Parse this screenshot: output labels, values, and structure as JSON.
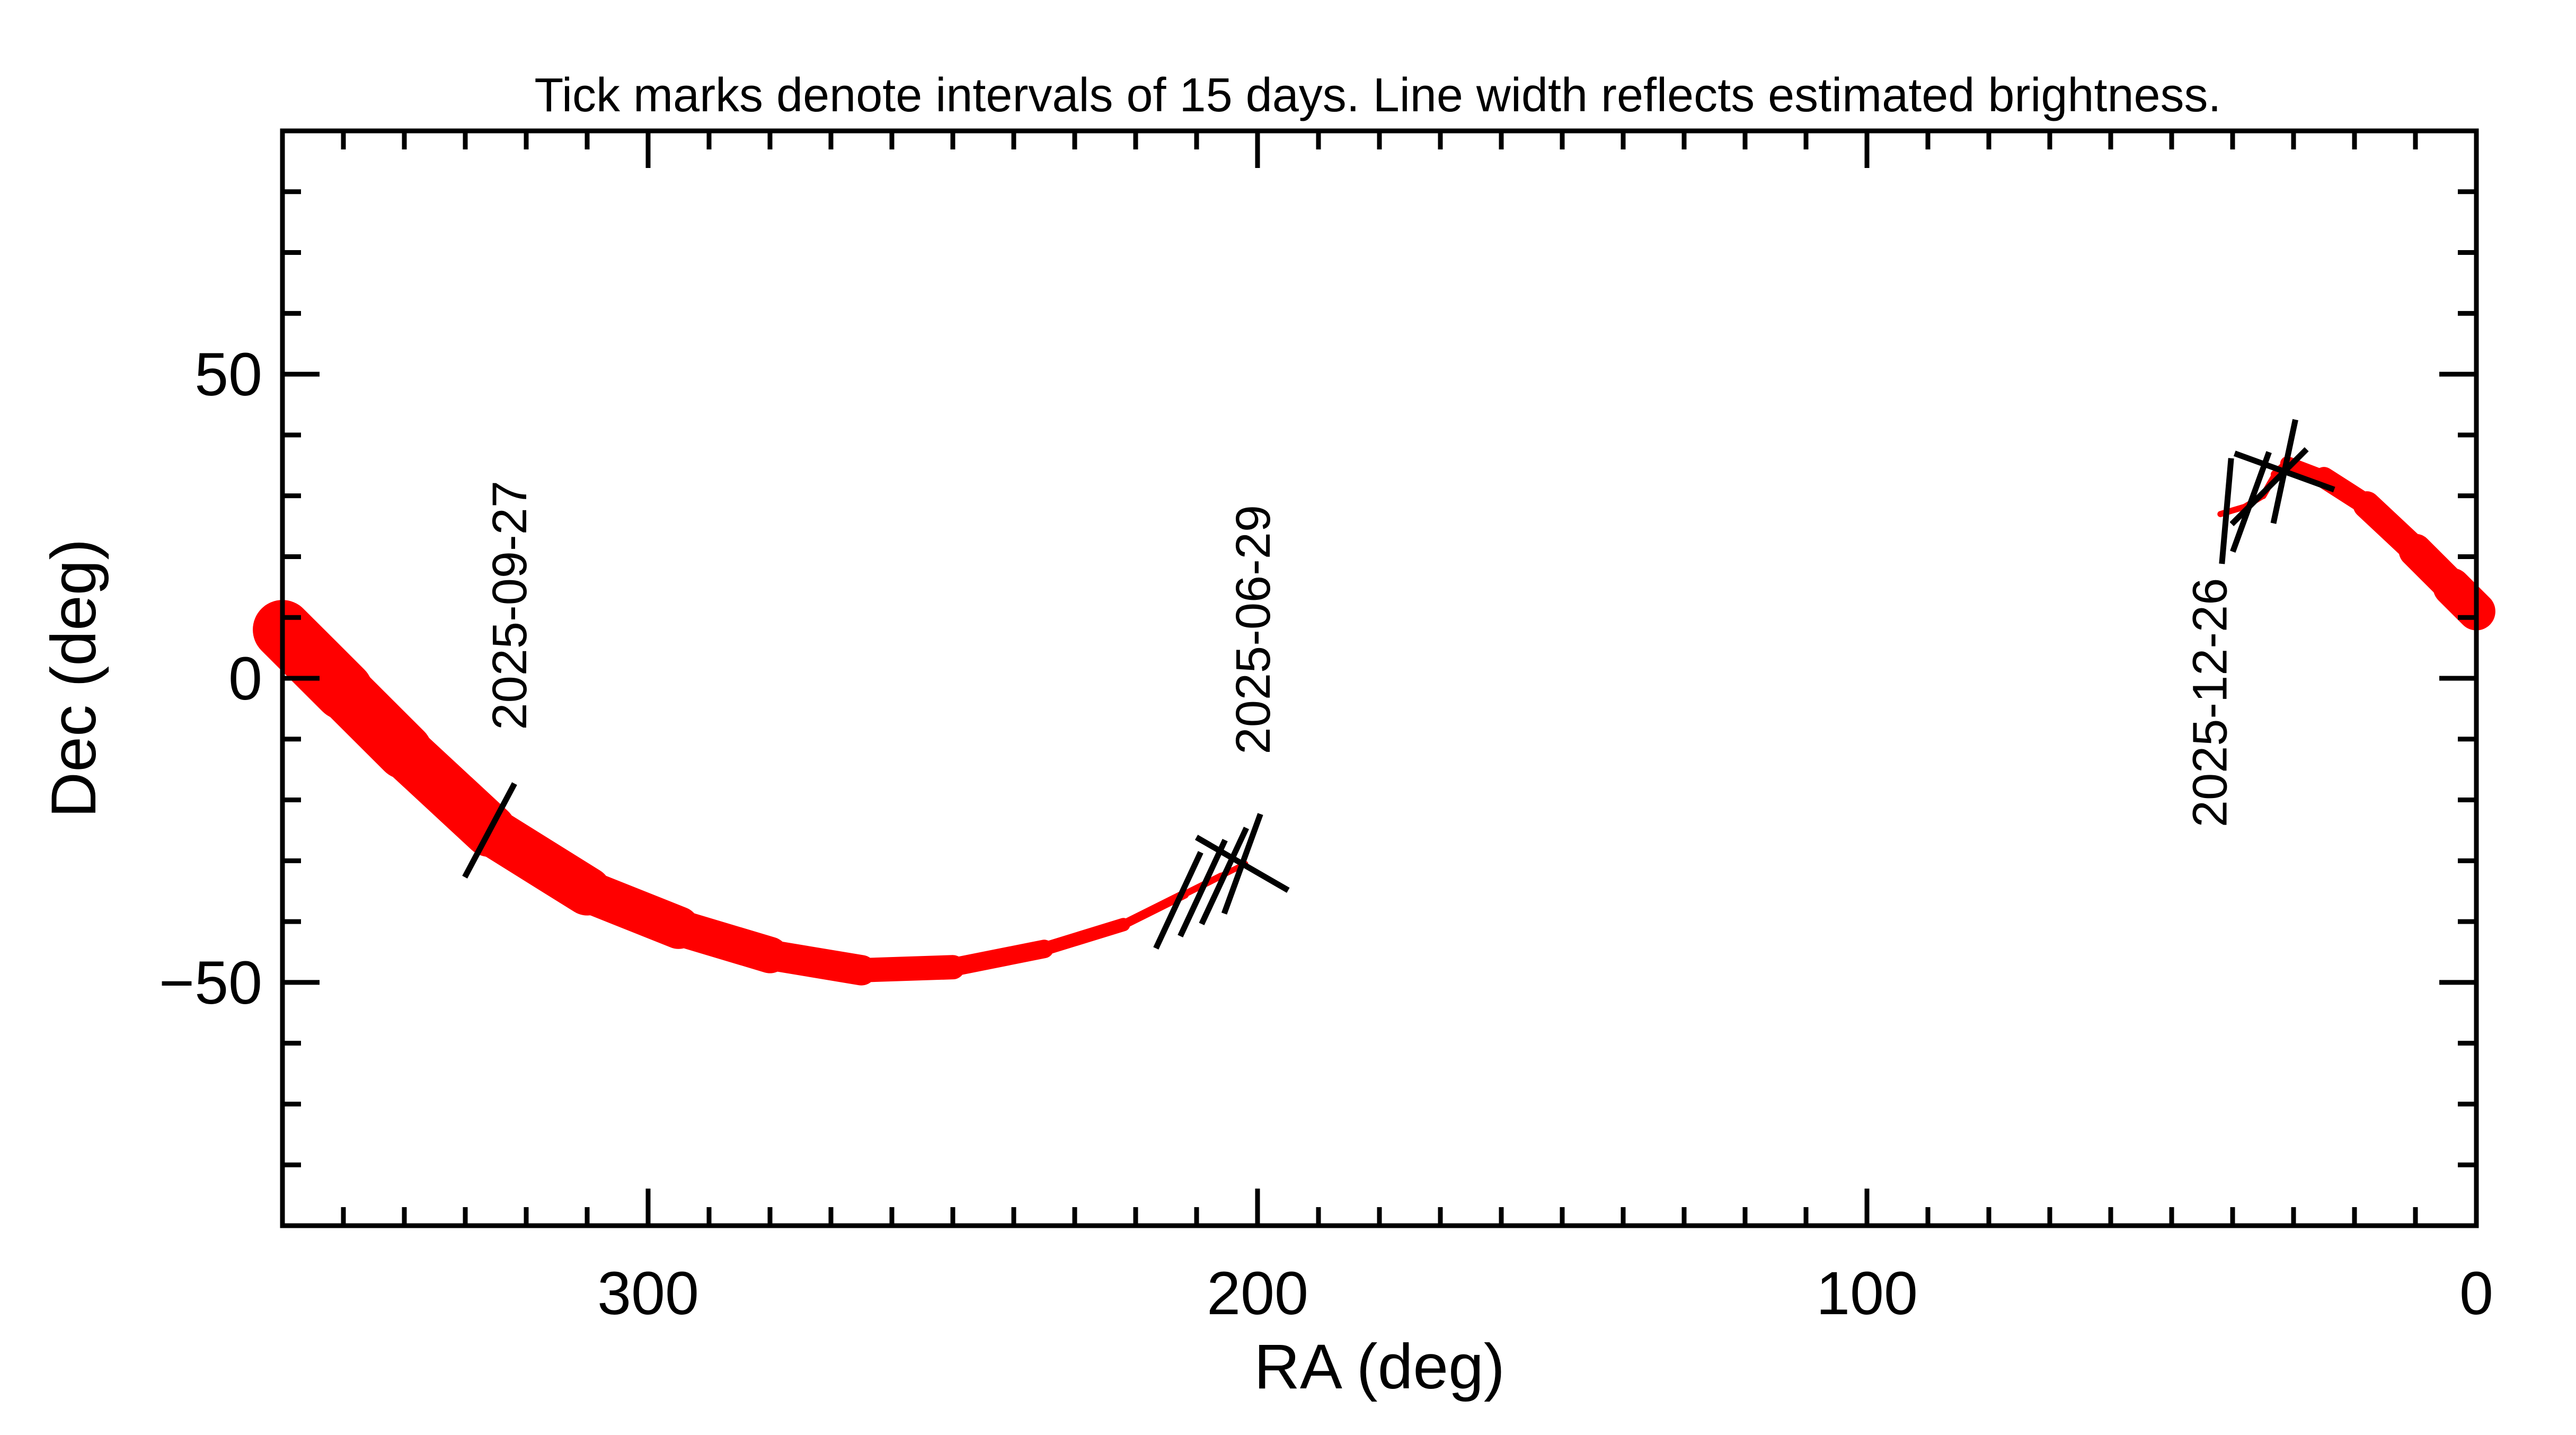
{
  "chart_data": {
    "type": "line",
    "title": "Tick marks denote intervals of 15 days.  Line width reflects estimated brightness.",
    "xlabel": "RA (deg)",
    "ylabel": "Dec (deg)",
    "xlim": [
      360,
      0
    ],
    "ylim": [
      -90,
      90
    ],
    "x_reversed": true,
    "grid": false,
    "line_color": "#ff0000",
    "tick_color": "#000000",
    "x_ticks": [
      "300",
      "200",
      "100",
      "0"
    ],
    "x_tick_values": [
      300,
      200,
      100,
      0
    ],
    "y_ticks": [
      "50",
      "0",
      "−50"
    ],
    "y_tick_values": [
      50,
      0,
      -50
    ],
    "series": [
      {
        "points": [
          {
            "ra": 360,
            "dec": 8,
            "w": 10
          },
          {
            "ra": 350,
            "dec": -2,
            "w": 9.5
          },
          {
            "ra": 340,
            "dec": -12,
            "w": 9
          },
          {
            "ra": 326,
            "dec": -25,
            "w": 8.5
          },
          {
            "ra": 310,
            "dec": -35,
            "w": 7.5
          },
          {
            "ra": 295,
            "dec": -41,
            "w": 6.5
          },
          {
            "ra": 280,
            "dec": -45.5,
            "w": 5.5
          },
          {
            "ra": 265,
            "dec": -48,
            "w": 4.5
          },
          {
            "ra": 250,
            "dec": -47.5,
            "w": 3.5
          },
          {
            "ra": 235,
            "dec": -44.5,
            "w": 2.6
          },
          {
            "ra": 222,
            "dec": -40.5,
            "w": 1.8
          },
          {
            "ra": 212,
            "dec": -35.5,
            "w": 1.2
          },
          {
            "ra": 206,
            "dec": -32.5,
            "w": 1
          },
          {
            "ra": 202,
            "dec": -30.5,
            "w": 0.9
          }
        ]
      },
      {
        "points": [
          {
            "ra": 42,
            "dec": 27,
            "w": 1
          },
          {
            "ra": 38,
            "dec": 28.2,
            "w": 1
          },
          {
            "ra": 35,
            "dec": 30,
            "w": 1
          },
          {
            "ra": 33,
            "dec": 33.5,
            "w": 1.2
          },
          {
            "ra": 31,
            "dec": 35.3,
            "w": 1.8
          },
          {
            "ra": 25,
            "dec": 33,
            "w": 3
          },
          {
            "ra": 18,
            "dec": 28.5,
            "w": 4
          },
          {
            "ra": 10,
            "dec": 21,
            "w": 5
          },
          {
            "ra": 4,
            "dec": 15,
            "w": 6
          },
          {
            "ra": 0,
            "dec": 11,
            "w": 6.5
          }
        ]
      }
    ],
    "tick_marks": [
      {
        "ra": 326,
        "dec": -25,
        "angle": 62
      },
      {
        "ra": 213,
        "dec": -36.5,
        "angle": 65
      },
      {
        "ra": 209,
        "dec": -34.5,
        "angle": 65
      },
      {
        "ra": 205.5,
        "dec": -32.5,
        "angle": 65
      },
      {
        "ra": 202.5,
        "dec": -30.5,
        "angle": 70
      },
      {
        "ra": 202.5,
        "dec": -30.5,
        "angle": -30
      },
      {
        "ra": 41,
        "dec": 27.5,
        "angle": 85
      },
      {
        "ra": 37,
        "dec": 29,
        "angle": 70
      },
      {
        "ra": 34,
        "dec": 31.5,
        "angle": 45
      },
      {
        "ra": 31.5,
        "dec": 34,
        "angle": 78
      },
      {
        "ra": 31.5,
        "dec": 34,
        "angle": -20
      }
    ],
    "annotations": [
      {
        "text": "2025-09-27",
        "ra": 320,
        "dec": 12
      },
      {
        "text": "2025-06-29",
        "ra": 198,
        "dec": 8
      },
      {
        "text": "2025-12-26",
        "ra": 41,
        "dec": -4
      }
    ]
  }
}
